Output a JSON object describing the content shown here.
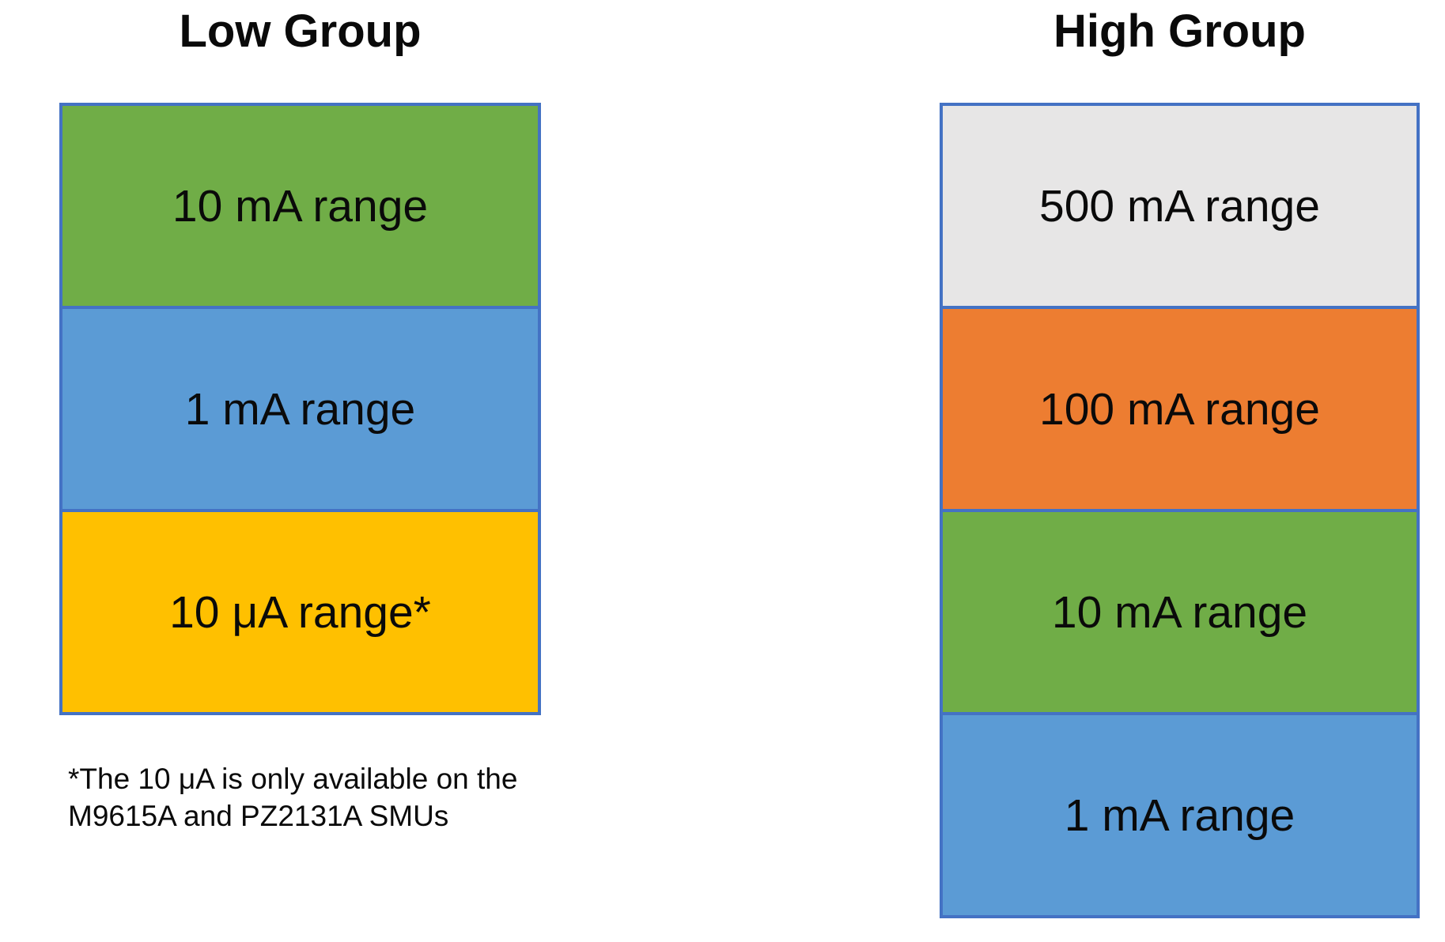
{
  "background_color": "#ffffff",
  "colors": {
    "box_border_blue": "#4472c4",
    "green": "#70ad47",
    "blue": "#5b9bd5",
    "gold": "#ffc000",
    "orange": "#ed7d31",
    "light_gray": "#e7e6e6",
    "text": "#0a0a0a"
  },
  "low_group": {
    "title": "Low Group",
    "boxes": [
      {
        "label": "10 mA range",
        "color": "#70ad47"
      },
      {
        "label": "1 mA range",
        "color": "#5b9bd5"
      },
      {
        "label": "10 μA range*",
        "color": "#ffc000"
      }
    ],
    "footnote_line1": "*The 10 μA is only available on the",
    "footnote_line2": "M9615A and PZ2131A SMUs"
  },
  "high_group": {
    "title": "High Group",
    "boxes": [
      {
        "label": "500 mA range",
        "color": "#e7e6e6"
      },
      {
        "label": "100 mA range",
        "color": "#ed7d31"
      },
      {
        "label": "10 mA range",
        "color": "#70ad47"
      },
      {
        "label": "1 mA range",
        "color": "#5b9bd5"
      }
    ]
  }
}
